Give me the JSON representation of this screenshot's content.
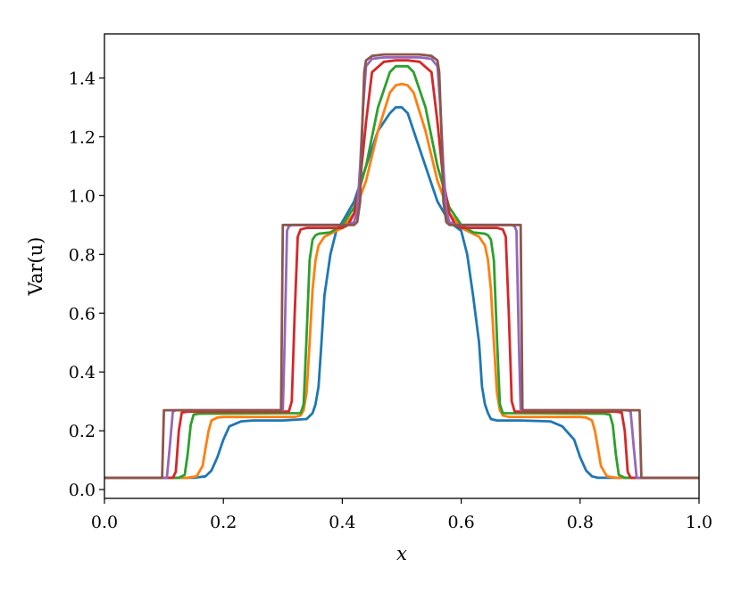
{
  "chart_data": {
    "type": "line",
    "title": "",
    "xlabel": "x",
    "ylabel": "Var(u)",
    "xlim": [
      0.0,
      1.0
    ],
    "ylim": [
      -0.03,
      1.55
    ],
    "x_ticks": [
      "0.0",
      "0.2",
      "0.4",
      "0.6",
      "0.8",
      "1.0"
    ],
    "y_ticks": [
      "0.0",
      "0.2",
      "0.4",
      "0.6",
      "0.8",
      "1.0",
      "1.2",
      "1.4"
    ],
    "grid": false,
    "legend": "none",
    "colors": [
      "#1f77b4",
      "#ff7f0e",
      "#2ca02c",
      "#d62728",
      "#9467bd",
      "#8c564b"
    ],
    "series": [
      {
        "x": [
          0.0,
          0.15,
          0.17,
          0.18,
          0.19,
          0.2,
          0.21,
          0.23,
          0.25,
          0.3,
          0.34,
          0.35,
          0.355,
          0.36,
          0.365,
          0.37,
          0.38,
          0.39,
          0.4,
          0.42,
          0.44,
          0.46,
          0.48,
          0.49,
          0.5,
          0.51,
          0.52,
          0.54,
          0.56,
          0.58,
          0.6,
          0.61,
          0.62,
          0.63,
          0.635,
          0.64,
          0.645,
          0.65,
          0.66,
          0.7,
          0.75,
          0.77,
          0.79,
          0.8,
          0.81,
          0.82,
          0.83,
          0.85,
          1.0
        ],
        "y": [
          0.04,
          0.04,
          0.045,
          0.065,
          0.11,
          0.17,
          0.215,
          0.232,
          0.235,
          0.235,
          0.24,
          0.26,
          0.29,
          0.35,
          0.5,
          0.66,
          0.8,
          0.88,
          0.91,
          0.98,
          1.1,
          1.22,
          1.28,
          1.3,
          1.3,
          1.28,
          1.22,
          1.1,
          0.98,
          0.91,
          0.88,
          0.8,
          0.66,
          0.5,
          0.35,
          0.29,
          0.26,
          0.24,
          0.235,
          0.235,
          0.232,
          0.215,
          0.17,
          0.11,
          0.065,
          0.045,
          0.04,
          0.04,
          0.04
        ]
      },
      {
        "x": [
          0.0,
          0.14,
          0.155,
          0.165,
          0.17,
          0.175,
          0.18,
          0.19,
          0.2,
          0.32,
          0.33,
          0.335,
          0.34,
          0.345,
          0.35,
          0.355,
          0.36,
          0.37,
          0.38,
          0.4,
          0.42,
          0.44,
          0.46,
          0.48,
          0.49,
          0.5,
          0.51,
          0.52,
          0.54,
          0.56,
          0.58,
          0.6,
          0.62,
          0.63,
          0.64,
          0.645,
          0.65,
          0.655,
          0.66,
          0.665,
          0.67,
          0.68,
          0.8,
          0.81,
          0.82,
          0.825,
          0.83,
          0.835,
          0.845,
          0.86,
          1.0
        ],
        "y": [
          0.04,
          0.04,
          0.045,
          0.08,
          0.14,
          0.2,
          0.235,
          0.245,
          0.247,
          0.247,
          0.252,
          0.27,
          0.33,
          0.5,
          0.68,
          0.78,
          0.83,
          0.86,
          0.87,
          0.89,
          0.94,
          1.05,
          1.22,
          1.35,
          1.375,
          1.38,
          1.375,
          1.35,
          1.22,
          1.05,
          0.94,
          0.89,
          0.87,
          0.86,
          0.83,
          0.78,
          0.68,
          0.5,
          0.33,
          0.27,
          0.252,
          0.247,
          0.247,
          0.245,
          0.235,
          0.2,
          0.14,
          0.08,
          0.045,
          0.04,
          0.04
        ]
      },
      {
        "x": [
          0.0,
          0.125,
          0.135,
          0.14,
          0.145,
          0.15,
          0.16,
          0.33,
          0.335,
          0.34,
          0.345,
          0.35,
          0.355,
          0.36,
          0.38,
          0.4,
          0.42,
          0.44,
          0.46,
          0.48,
          0.49,
          0.5,
          0.51,
          0.52,
          0.54,
          0.56,
          0.58,
          0.6,
          0.62,
          0.64,
          0.645,
          0.65,
          0.655,
          0.66,
          0.665,
          0.67,
          0.84,
          0.85,
          0.855,
          0.86,
          0.865,
          0.875,
          1.0
        ],
        "y": [
          0.04,
          0.04,
          0.05,
          0.12,
          0.22,
          0.255,
          0.258,
          0.26,
          0.29,
          0.52,
          0.78,
          0.85,
          0.865,
          0.87,
          0.875,
          0.9,
          0.96,
          1.1,
          1.3,
          1.42,
          1.44,
          1.44,
          1.44,
          1.42,
          1.3,
          1.1,
          0.96,
          0.9,
          0.875,
          0.87,
          0.865,
          0.85,
          0.78,
          0.52,
          0.29,
          0.26,
          0.258,
          0.255,
          0.22,
          0.12,
          0.05,
          0.04,
          0.04
        ]
      },
      {
        "x": [
          0.0,
          0.115,
          0.12,
          0.125,
          0.13,
          0.14,
          0.31,
          0.315,
          0.32,
          0.325,
          0.33,
          0.34,
          0.4,
          0.41,
          0.42,
          0.43,
          0.44,
          0.45,
          0.47,
          0.49,
          0.5,
          0.51,
          0.53,
          0.55,
          0.56,
          0.57,
          0.58,
          0.59,
          0.6,
          0.66,
          0.67,
          0.675,
          0.68,
          0.685,
          0.69,
          0.86,
          0.87,
          0.875,
          0.88,
          0.885,
          1.0
        ],
        "y": [
          0.04,
          0.04,
          0.06,
          0.2,
          0.262,
          0.265,
          0.265,
          0.3,
          0.6,
          0.86,
          0.885,
          0.89,
          0.89,
          0.9,
          0.94,
          1.05,
          1.25,
          1.42,
          1.455,
          1.46,
          1.46,
          1.46,
          1.455,
          1.42,
          1.25,
          1.05,
          0.94,
          0.9,
          0.89,
          0.89,
          0.885,
          0.86,
          0.6,
          0.3,
          0.265,
          0.265,
          0.262,
          0.2,
          0.06,
          0.04,
          0.04
        ]
      },
      {
        "x": [
          0.0,
          0.105,
          0.11,
          0.115,
          0.12,
          0.3,
          0.303,
          0.307,
          0.31,
          0.315,
          0.41,
          0.42,
          0.425,
          0.43,
          0.435,
          0.44,
          0.45,
          0.47,
          0.49,
          0.5,
          0.51,
          0.53,
          0.55,
          0.56,
          0.565,
          0.57,
          0.575,
          0.58,
          0.59,
          0.685,
          0.69,
          0.693,
          0.697,
          0.7,
          0.88,
          0.885,
          0.89,
          0.895,
          1.0
        ],
        "y": [
          0.04,
          0.04,
          0.15,
          0.265,
          0.27,
          0.27,
          0.5,
          0.88,
          0.895,
          0.9,
          0.9,
          0.91,
          0.95,
          1.1,
          1.3,
          1.44,
          1.465,
          1.47,
          1.47,
          1.47,
          1.47,
          1.47,
          1.465,
          1.44,
          1.3,
          1.1,
          0.95,
          0.91,
          0.9,
          0.9,
          0.895,
          0.88,
          0.5,
          0.27,
          0.27,
          0.265,
          0.15,
          0.04,
          0.04
        ]
      },
      {
        "x": [
          0.0,
          0.097,
          0.1,
          0.103,
          0.297,
          0.3,
          0.303,
          0.42,
          0.425,
          0.43,
          0.433,
          0.437,
          0.44,
          0.45,
          0.47,
          0.49,
          0.5,
          0.51,
          0.53,
          0.55,
          0.56,
          0.563,
          0.567,
          0.57,
          0.575,
          0.58,
          0.697,
          0.7,
          0.703,
          0.897,
          0.9,
          0.903,
          1.0
        ],
        "y": [
          0.04,
          0.04,
          0.27,
          0.27,
          0.27,
          0.9,
          0.9,
          0.9,
          0.91,
          0.98,
          1.2,
          1.42,
          1.46,
          1.475,
          1.48,
          1.48,
          1.48,
          1.48,
          1.48,
          1.475,
          1.46,
          1.42,
          1.2,
          0.98,
          0.91,
          0.9,
          0.9,
          0.9,
          0.27,
          0.27,
          0.27,
          0.04,
          0.04
        ]
      }
    ]
  }
}
